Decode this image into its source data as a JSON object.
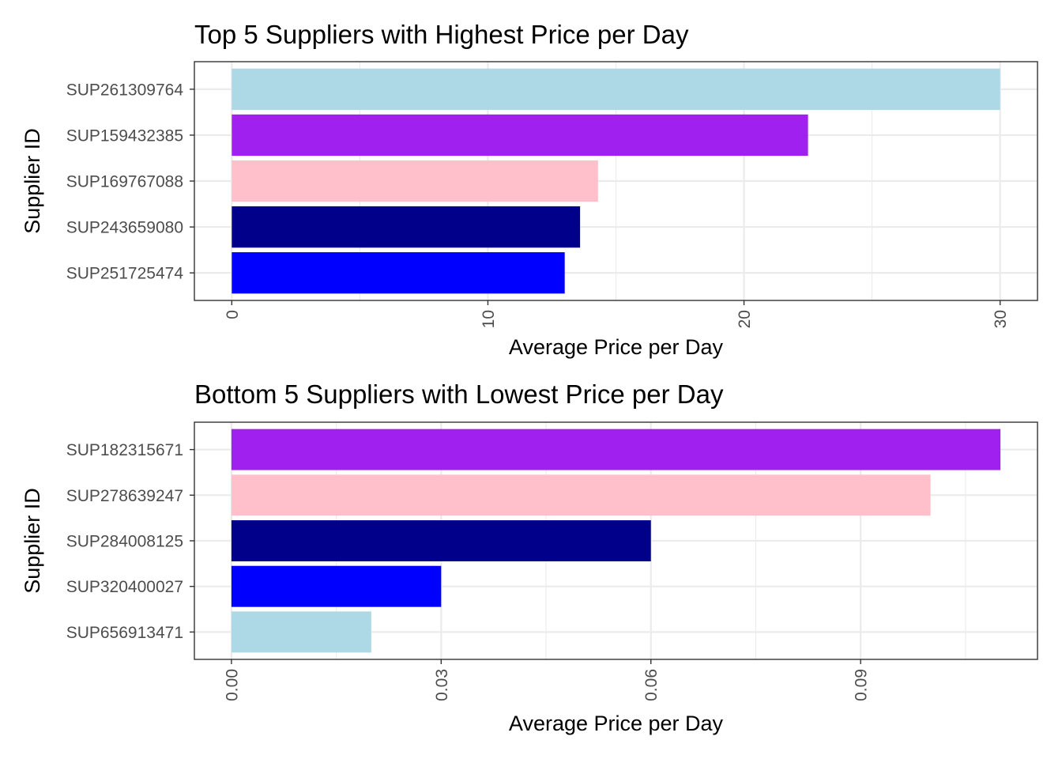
{
  "chart_data": [
    {
      "type": "bar",
      "orientation": "horizontal",
      "title": "Top 5 Suppliers with Highest Price per Day",
      "xlabel": "Average Price per Day",
      "ylabel": "Supplier ID",
      "categories": [
        "SUP261309764",
        "SUP159432385",
        "SUP169767088",
        "SUP243659080",
        "SUP251725474"
      ],
      "values": [
        30.0,
        22.5,
        14.3,
        13.6,
        13.0
      ],
      "colors": [
        "#add8e6",
        "#a020f0",
        "#ffc0cb",
        "#00008b",
        "#0000ff"
      ],
      "xlim": [
        -1.46,
        31.46
      ],
      "xticks": [
        0,
        10,
        20,
        30
      ],
      "xtick_labels": [
        "0",
        "10",
        "20",
        "30"
      ],
      "minor_xticks": [
        5,
        15,
        25
      ],
      "grid": true
    },
    {
      "type": "bar",
      "orientation": "horizontal",
      "title": "Bottom 5 Suppliers with Lowest Price per Day",
      "xlabel": "Average Price per Day",
      "ylabel": "Supplier ID",
      "categories": [
        "SUP182315671",
        "SUP278639247",
        "SUP284008125",
        "SUP320400027",
        "SUP656913471"
      ],
      "values": [
        0.11,
        0.1,
        0.06,
        0.03,
        0.02
      ],
      "colors": [
        "#a020f0",
        "#ffc0cb",
        "#00008b",
        "#0000ff",
        "#add8e6"
      ],
      "xlim": [
        -0.0053,
        0.1153
      ],
      "xticks": [
        0,
        0.03,
        0.06,
        0.09
      ],
      "xtick_labels": [
        "0.00",
        "0.03",
        "0.06",
        "0.09"
      ],
      "minor_xticks": [
        0.015,
        0.045,
        0.075,
        0.105
      ],
      "grid": true
    }
  ]
}
